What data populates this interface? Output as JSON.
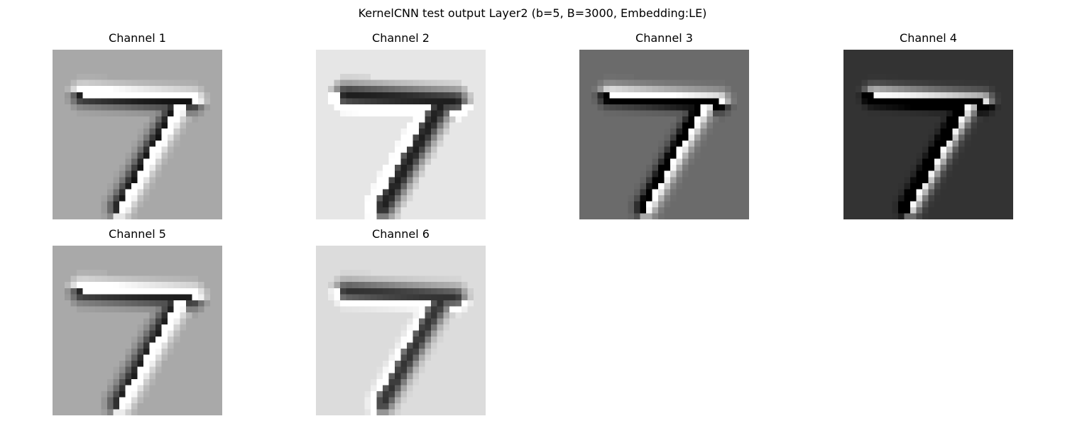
{
  "title": "KernelCNN test output Layer2 (b=5, B=3000, Embedding:LE)",
  "panels": [
    {
      "label": "Channel 1",
      "background": "#a8a8a8"
    },
    {
      "label": "Channel 2",
      "background": "#e6e6e6"
    },
    {
      "label": "Channel 3",
      "background": "#6b6b6b"
    },
    {
      "label": "Channel 4",
      "background": "#333333"
    },
    {
      "label": "Channel 5",
      "background": "#a9a9a9"
    },
    {
      "label": "Channel 6",
      "background": "#dcdcdc"
    }
  ]
}
